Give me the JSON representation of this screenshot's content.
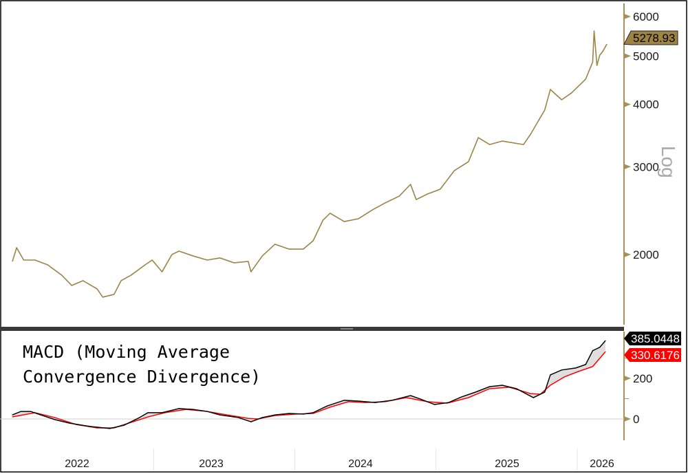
{
  "chart_data": [
    {
      "type": "line",
      "scale": "log",
      "scale_label": "Log",
      "ylim": [
        1456,
        6373
      ],
      "yticks": [
        2000,
        3000,
        4000,
        5000,
        6000
      ],
      "ytick_labels": [
        "2000",
        "3000",
        "4000",
        "5000",
        "6000"
      ],
      "xlim": [
        2022.0,
        2026.21
      ],
      "xtick_labels": [
        "2022",
        "2023",
        "2024",
        "2025",
        "2026"
      ],
      "last_value_label": "5278.93",
      "colors": {
        "line": "#9a8446",
        "axis": "#a89159",
        "tag": "#9c8444"
      },
      "grid": false,
      "x": [
        2022.0,
        2022.03,
        2022.08,
        2022.16,
        2022.25,
        2022.35,
        2022.42,
        2022.5,
        2022.6,
        2022.64,
        2022.72,
        2022.77,
        2022.84,
        2022.94,
        2022.99,
        2023.06,
        2023.13,
        2023.18,
        2023.28,
        2023.38,
        2023.47,
        2023.57,
        2023.67,
        2023.69,
        2023.77,
        2023.86,
        2023.96,
        2024.06,
        2024.13,
        2024.2,
        2024.25,
        2024.35,
        2024.45,
        2024.55,
        2024.64,
        2024.74,
        2024.82,
        2024.86,
        2024.94,
        2025.03,
        2025.13,
        2025.23,
        2025.3,
        2025.38,
        2025.47,
        2025.62,
        2025.67,
        2025.77,
        2025.81,
        2025.89,
        2025.96,
        2026.06,
        2026.11,
        2026.12,
        2026.14,
        2026.16,
        2026.18,
        2026.21
      ],
      "values": [
        1938,
        2064,
        1950,
        1950,
        1907,
        1818,
        1734,
        1773,
        1707,
        1643,
        1664,
        1773,
        1818,
        1907,
        1950,
        1847,
        2000,
        2032,
        1987,
        1950,
        1969,
        1925,
        1938,
        1847,
        1987,
        2098,
        2051,
        2051,
        2131,
        2344,
        2420,
        2329,
        2359,
        2458,
        2538,
        2619,
        2765,
        2578,
        2645,
        2704,
        2946,
        3070,
        3431,
        3323,
        3377,
        3323,
        3485,
        3895,
        4285,
        4086,
        4217,
        4494,
        4865,
        5612,
        4788,
        5021,
        5102,
        5279
      ]
    },
    {
      "type": "line",
      "title": "MACD (Moving Average Convergence Divergence)",
      "title_lines": [
        "MACD (Moving Average",
        "Convergence Divergence)"
      ],
      "ylim": [
        -105,
        430
      ],
      "yticks": [
        0,
        200
      ],
      "ytick_labels": [
        "0",
        "200"
      ],
      "xlim": [
        2022.0,
        2026.21
      ],
      "grid": false,
      "series": [
        {
          "color": "#000000",
          "last_value_label": "385.0448",
          "x": [
            2022.0,
            2022.06,
            2022.13,
            2022.2,
            2022.3,
            2022.4,
            2022.55,
            2022.69,
            2022.79,
            2022.89,
            2022.96,
            2023.06,
            2023.18,
            2023.28,
            2023.38,
            2023.47,
            2023.6,
            2023.69,
            2023.77,
            2023.86,
            2023.96,
            2024.06,
            2024.13,
            2024.23,
            2024.35,
            2024.45,
            2024.57,
            2024.69,
            2024.82,
            2024.89,
            2024.99,
            2025.09,
            2025.18,
            2025.28,
            2025.38,
            2025.47,
            2025.57,
            2025.69,
            2025.77,
            2025.81,
            2025.89,
            2025.99,
            2026.06,
            2026.11,
            2026.16,
            2026.2
          ],
          "values": [
            20,
            37,
            37,
            20,
            -3,
            -20,
            -37,
            -47,
            -31,
            3,
            31,
            31,
            51,
            47,
            37,
            20,
            7,
            -14,
            7,
            20,
            27,
            24,
            31,
            64,
            92,
            88,
            81,
            92,
            115,
            98,
            71,
            81,
            108,
            132,
            159,
            166,
            149,
            105,
            132,
            217,
            241,
            251,
            268,
            336,
            353,
            385
          ]
        },
        {
          "color": "#ff0000",
          "last_value_label": "330.6176",
          "x": [
            2022.0,
            2022.16,
            2022.3,
            2022.45,
            2022.6,
            2022.72,
            2022.84,
            2022.96,
            2023.08,
            2023.23,
            2023.38,
            2023.52,
            2023.67,
            2023.74,
            2023.86,
            2024.01,
            2024.13,
            2024.25,
            2024.38,
            2024.5,
            2024.64,
            2024.79,
            2024.94,
            2025.08,
            2025.23,
            2025.38,
            2025.52,
            2025.67,
            2025.74,
            2025.81,
            2025.91,
            2026.01,
            2026.11,
            2026.2
          ],
          "values": [
            10,
            31,
            7,
            -27,
            -44,
            -44,
            -17,
            10,
            31,
            47,
            37,
            20,
            3,
            0,
            17,
            24,
            27,
            58,
            85,
            81,
            85,
            105,
            85,
            78,
            105,
            149,
            156,
            125,
            122,
            166,
            207,
            234,
            258,
            331
          ]
        }
      ],
      "histogram_fill": "#dcdcdc"
    }
  ]
}
